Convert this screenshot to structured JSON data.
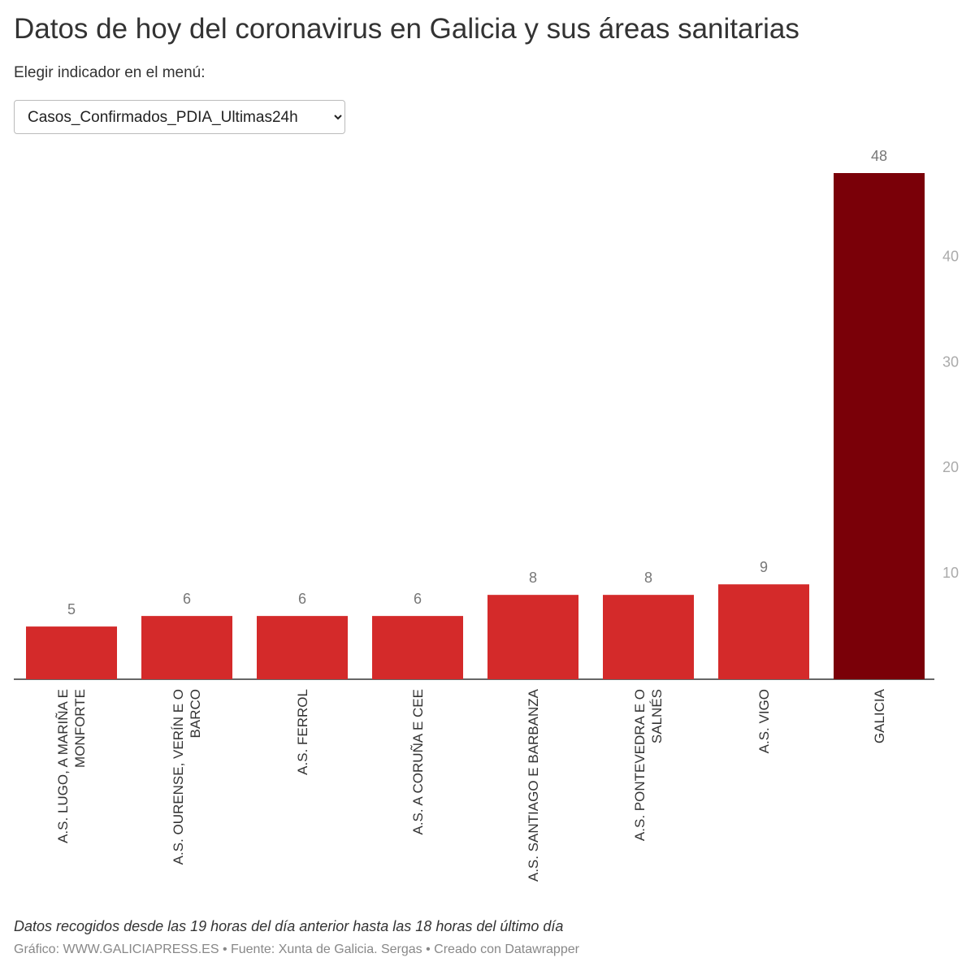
{
  "chart_data": {
    "type": "bar",
    "title": "Datos de hoy del coronavirus en Galicia y sus áreas sanitarias",
    "menu_label": "Elegir indicador en el menú:",
    "menu_selected": "Casos_Confirmados_PDIA_Ultimas24h",
    "categories": [
      "A.S. LUGO, A MARIÑA E MONFORTE",
      "A.S. OURENSE, VERÍN E O BARCO",
      "A.S. FERROL",
      "A.S. A CORUÑA E CEE",
      "A.S. SANTIAGO E BARBANZA",
      "A.S. PONTEVEDRA E O SALNÉS",
      "A.S. VIGO",
      "GALICIA"
    ],
    "values": [
      5,
      6,
      6,
      6,
      8,
      8,
      9,
      48
    ],
    "colors": [
      "#d42a2a",
      "#d42a2a",
      "#d42a2a",
      "#d42a2a",
      "#d42a2a",
      "#d42a2a",
      "#d42a2a",
      "#7a0008"
    ],
    "ylim": [
      0,
      48
    ],
    "yticks": [
      10,
      20,
      30,
      40
    ],
    "grid": false,
    "note": "Datos recogidos desde las 19 horas del día anterior hasta las 18 horas del último día",
    "credit": "Gráfico: WWW.GALICIAPRESS.ES • Fuente: Xunta de Galicia. Sergas • Creado con Datawrapper"
  }
}
